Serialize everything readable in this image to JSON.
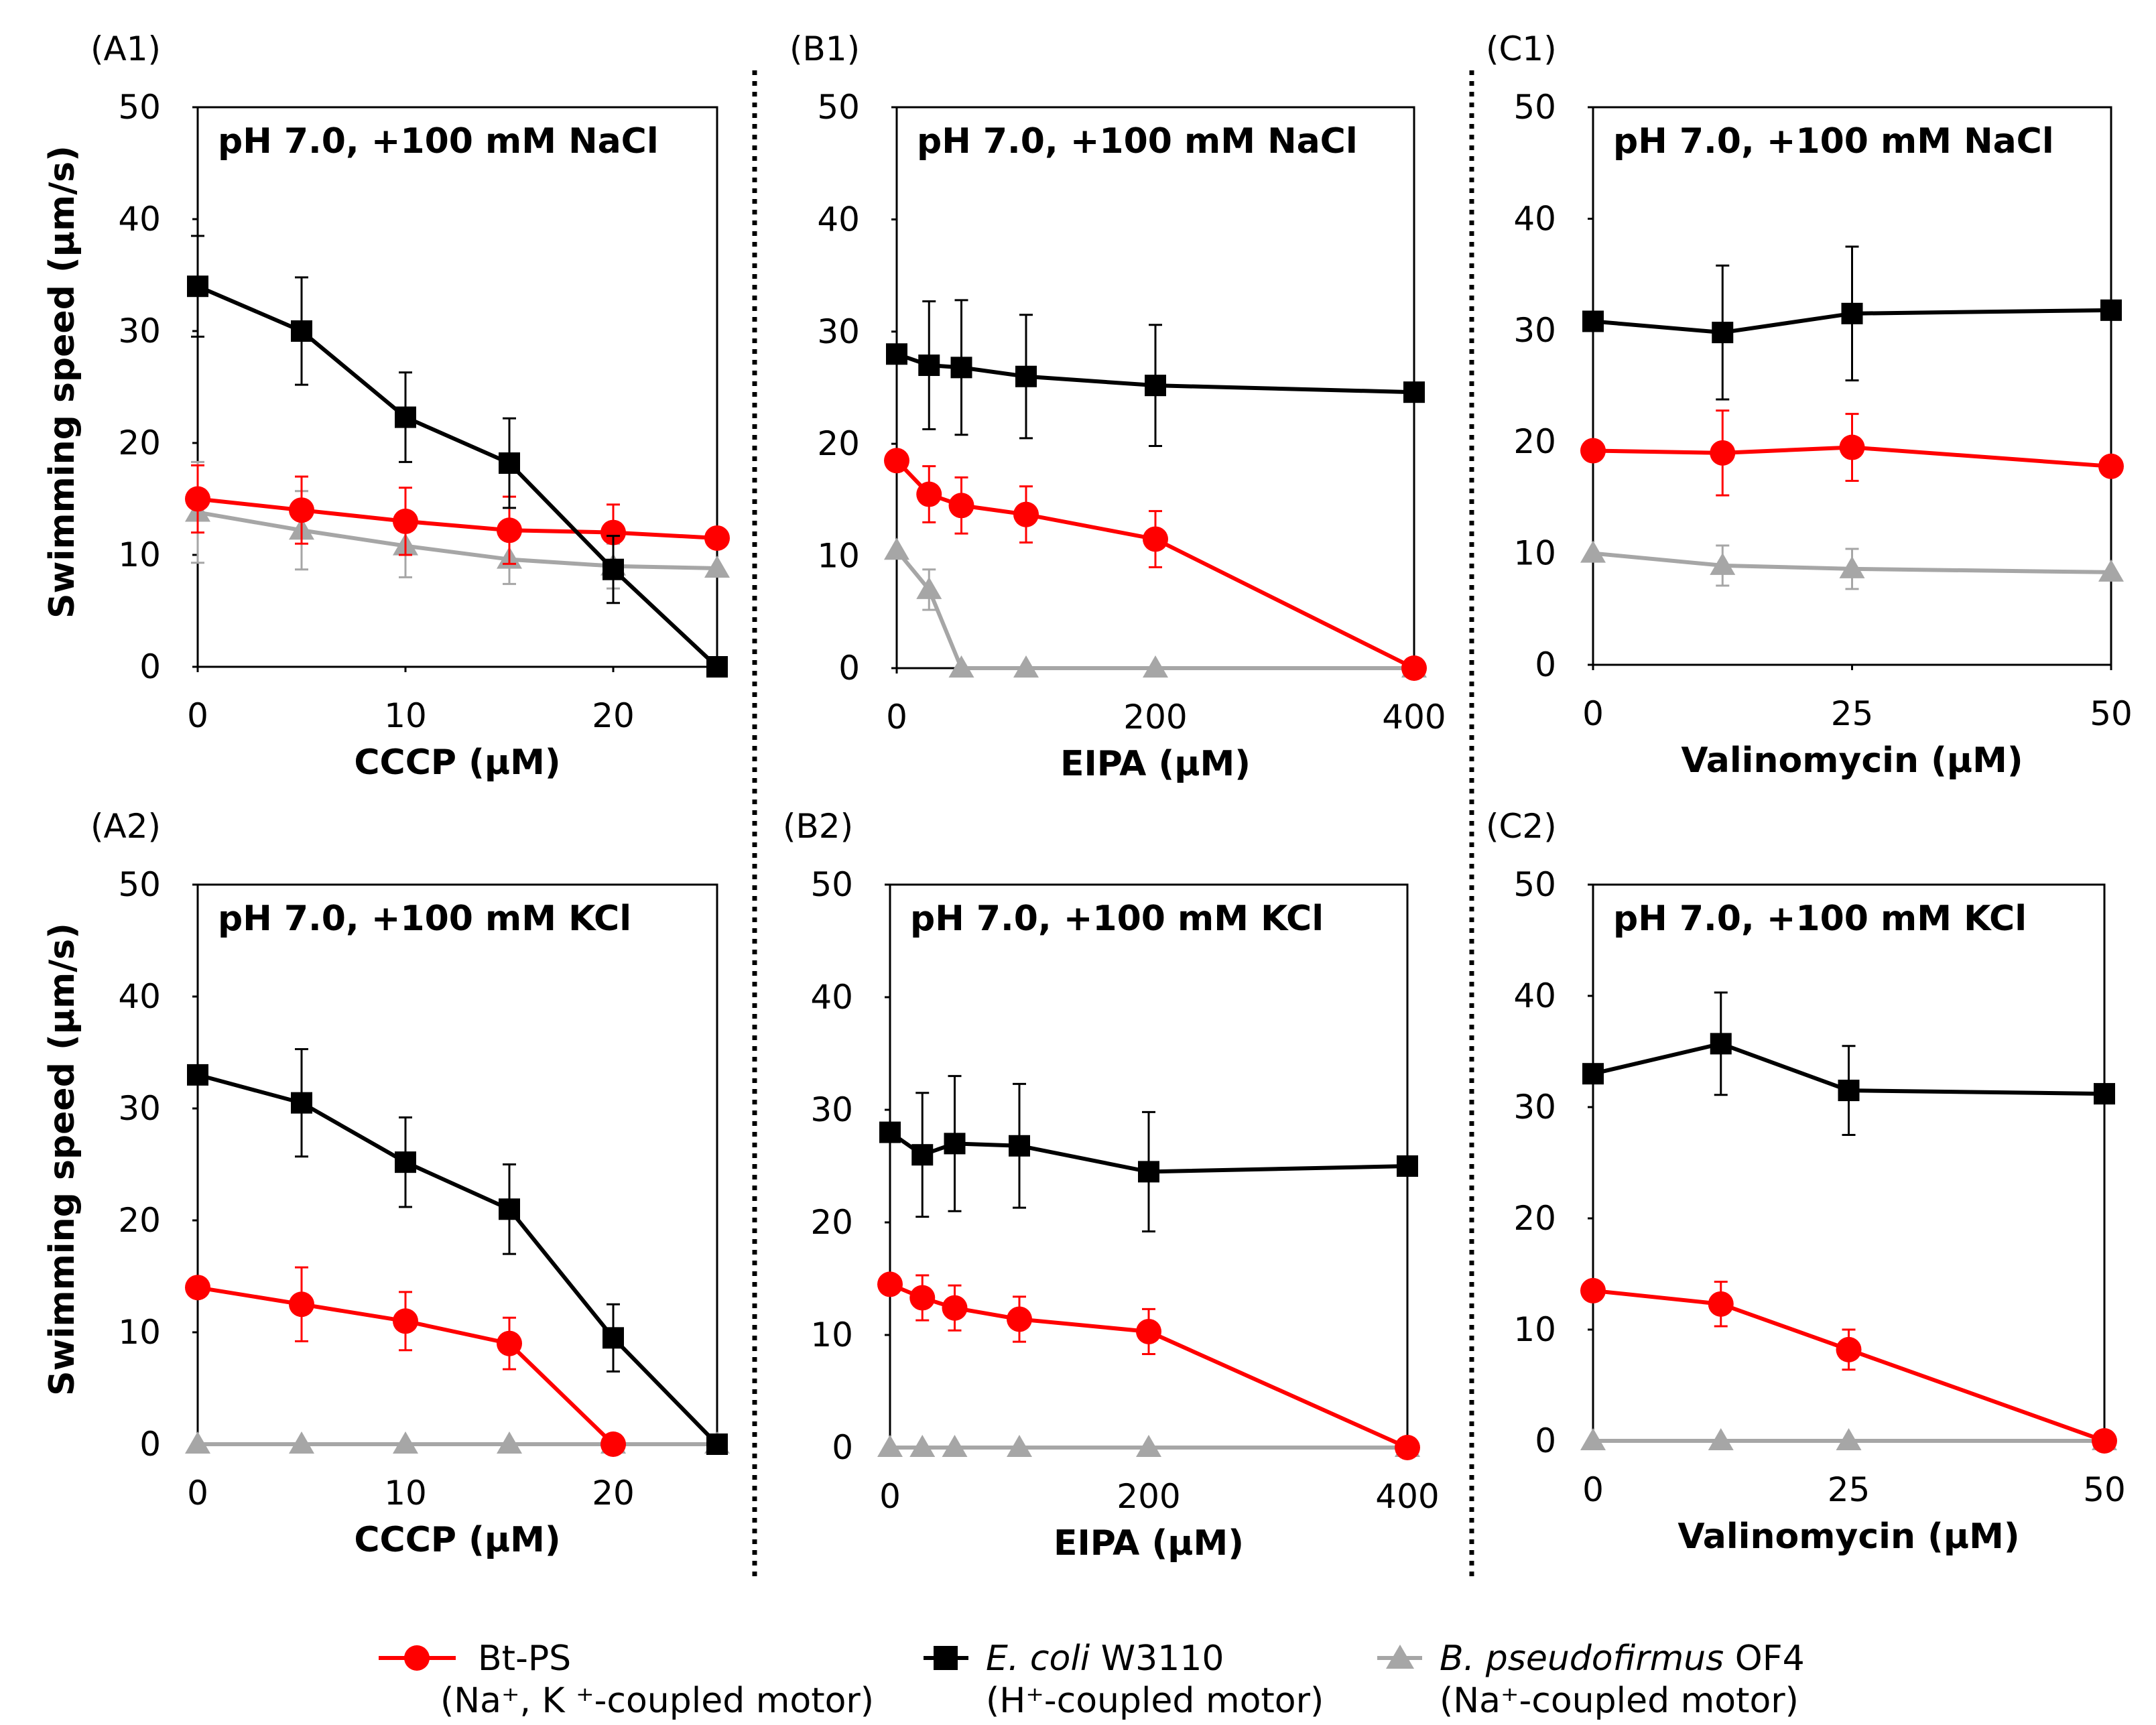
{
  "ylabels": [
    "Swimming speed (μm/s)",
    "Swimming speed  (μm/s)"
  ],
  "legend": [
    {
      "line1": "Bt-PS",
      "line2": "(Na⁺, K ⁺-coupled motor)",
      "color": "#ff0000",
      "marker": "circle"
    },
    {
      "line1_italic": "E. coli",
      "line1_rest": " W3110",
      "line2": "(H⁺-coupled motor)",
      "color": "#000000",
      "marker": "square"
    },
    {
      "line1_italic": "B. pseudofirmus",
      "line1_rest": " OF4",
      "line2": "(Na⁺-coupled motor)",
      "color": "#a6a6a6",
      "marker": "triangle"
    }
  ],
  "colors": {
    "bt": "#ff0000",
    "ecoli": "#000000",
    "bpseudo": "#a6a6a6"
  },
  "chart_data": [
    {
      "id": "A1",
      "panel_label": "(A1)",
      "type": "line",
      "title": "pH 7.0, +100 mM NaCl",
      "xlabel": "CCCP (μM)",
      "xlim": [
        0,
        25
      ],
      "xticks": [
        0,
        10,
        20
      ],
      "ylim": [
        0,
        50
      ],
      "yticks": [
        0,
        10,
        20,
        30,
        40,
        50
      ],
      "series": [
        {
          "name": "Bt-PS",
          "x": [
            0,
            5,
            10,
            15,
            20,
            25
          ],
          "y": [
            15,
            14,
            13,
            12.2,
            12,
            11.5
          ],
          "err": [
            3,
            3,
            3,
            3,
            2.5,
            0
          ]
        },
        {
          "name": "E. coli W3110",
          "x": [
            0,
            5,
            10,
            15,
            20,
            25
          ],
          "y": [
            34,
            30,
            22.3,
            18.2,
            8.7,
            0
          ],
          "err": [
            4.5,
            4.8,
            4,
            4,
            3,
            0
          ]
        },
        {
          "name": "B. pseudofirmus OF4",
          "x": [
            0,
            5,
            10,
            15,
            20,
            25
          ],
          "y": [
            13.8,
            12.2,
            10.8,
            9.6,
            9,
            8.8
          ],
          "err": [
            4.5,
            3.5,
            2.8,
            2.2,
            2,
            0
          ]
        }
      ]
    },
    {
      "id": "B1",
      "panel_label": "(B1)",
      "type": "line",
      "title": "pH 7.0, +100 mM NaCl",
      "xlabel": "EIPA (μM)",
      "xlim": [
        0,
        400
      ],
      "xticks": [
        0,
        200,
        400
      ],
      "ylim": [
        0,
        50
      ],
      "yticks": [
        0,
        10,
        20,
        30,
        40,
        50
      ],
      "series": [
        {
          "name": "Bt-PS",
          "x": [
            0,
            25,
            50,
            100,
            200,
            400
          ],
          "y": [
            18.5,
            15.5,
            14.5,
            13.7,
            11.5,
            0
          ],
          "err": [
            0,
            2.5,
            2.5,
            2.5,
            2.5,
            0
          ]
        },
        {
          "name": "E. coli W3110",
          "x": [
            0,
            25,
            50,
            100,
            200,
            400
          ],
          "y": [
            28,
            27,
            26.8,
            26,
            25.2,
            24.6
          ],
          "err": [
            0,
            5.7,
            6,
            5.5,
            5.4,
            0
          ]
        },
        {
          "name": "B. pseudofirmus OF4",
          "x": [
            0,
            25,
            50,
            100,
            200,
            400
          ],
          "y": [
            10.5,
            7,
            0,
            0,
            0,
            0
          ],
          "err": [
            0,
            1.8,
            0,
            0,
            0,
            0
          ]
        }
      ]
    },
    {
      "id": "C1",
      "panel_label": "(C1)",
      "type": "line",
      "title": "pH 7.0, +100 mM NaCl",
      "xlabel": "Valinomycin (μM)",
      "xlim": [
        0,
        50
      ],
      "xticks": [
        0,
        25,
        50
      ],
      "ylim": [
        0,
        50
      ],
      "yticks": [
        0,
        10,
        20,
        30,
        40,
        50
      ],
      "series": [
        {
          "name": "Bt-PS",
          "x": [
            0,
            12.5,
            25,
            50
          ],
          "y": [
            19.2,
            19,
            19.5,
            17.8
          ],
          "err": [
            0,
            3.8,
            3,
            0
          ]
        },
        {
          "name": "E. coli W3110",
          "x": [
            0,
            12.5,
            25,
            50
          ],
          "y": [
            30.8,
            29.8,
            31.5,
            31.8
          ],
          "err": [
            0,
            6,
            6,
            0
          ]
        },
        {
          "name": "B. pseudofirmus OF4",
          "x": [
            0,
            12.5,
            25,
            50
          ],
          "y": [
            10,
            8.9,
            8.6,
            8.3
          ],
          "err": [
            0,
            1.8,
            1.8,
            0
          ]
        }
      ]
    },
    {
      "id": "A2",
      "panel_label": "(A2)",
      "type": "line",
      "title": "pH 7.0, +100 mM KCl",
      "xlabel": "CCCP (μM)",
      "xlim": [
        0,
        25
      ],
      "xticks": [
        0,
        10,
        20
      ],
      "ylim": [
        0,
        50
      ],
      "yticks": [
        0,
        10,
        20,
        30,
        40,
        50
      ],
      "series": [
        {
          "name": "Bt-PS",
          "x": [
            0,
            5,
            10,
            15,
            20
          ],
          "y": [
            14,
            12.5,
            11,
            9,
            0
          ],
          "err": [
            0,
            3.3,
            2.6,
            2.3,
            0
          ]
        },
        {
          "name": "E. coli W3110",
          "x": [
            0,
            5,
            10,
            15,
            20,
            25
          ],
          "y": [
            33,
            30.5,
            25.2,
            21,
            9.5,
            0
          ],
          "err": [
            0,
            4.8,
            4,
            4,
            3,
            0
          ]
        },
        {
          "name": "B. pseudofirmus OF4",
          "x": [
            0,
            5,
            10,
            15,
            20,
            25
          ],
          "y": [
            0,
            0,
            0,
            0,
            0,
            0
          ],
          "err": [
            0,
            0,
            0,
            0,
            0,
            0
          ]
        }
      ]
    },
    {
      "id": "B2",
      "panel_label": "(B2)",
      "type": "line",
      "title": "pH 7.0, +100 mM KCl",
      "xlabel": "EIPA (μM)",
      "xlim": [
        0,
        400
      ],
      "xticks": [
        0,
        200,
        400
      ],
      "ylim": [
        0,
        50
      ],
      "yticks": [
        0,
        10,
        20,
        30,
        40,
        50
      ],
      "series": [
        {
          "name": "Bt-PS",
          "x": [
            0,
            25,
            50,
            100,
            200,
            400
          ],
          "y": [
            14.5,
            13.3,
            12.4,
            11.4,
            10.3,
            0
          ],
          "err": [
            0,
            2,
            2,
            2,
            2,
            0
          ]
        },
        {
          "name": "E. coli W3110",
          "x": [
            0,
            25,
            50,
            100,
            200,
            400
          ],
          "y": [
            28,
            26,
            27,
            26.8,
            24.5,
            25
          ],
          "err": [
            0,
            5.5,
            6,
            5.5,
            5.3,
            0
          ]
        },
        {
          "name": "B. pseudofirmus OF4",
          "x": [
            0,
            25,
            50,
            100,
            200,
            400
          ],
          "y": [
            0,
            0,
            0,
            0,
            0,
            0
          ],
          "err": [
            0,
            0,
            0,
            0,
            0,
            0
          ]
        }
      ]
    },
    {
      "id": "C2",
      "panel_label": "(C2)",
      "type": "line",
      "title": "pH 7.0, +100 mM KCl",
      "xlabel": "Valinomycin (μM)",
      "xlim": [
        0,
        50
      ],
      "xticks": [
        0,
        25,
        50
      ],
      "ylim": [
        0,
        50
      ],
      "yticks": [
        0,
        10,
        20,
        30,
        40,
        50
      ],
      "series": [
        {
          "name": "Bt-PS",
          "x": [
            0,
            12.5,
            25,
            50
          ],
          "y": [
            13.5,
            12.3,
            8.2,
            0
          ],
          "err": [
            0,
            2,
            1.8,
            0
          ]
        },
        {
          "name": "E. coli W3110",
          "x": [
            0,
            12.5,
            25,
            50
          ],
          "y": [
            33,
            35.7,
            31.5,
            31.2
          ],
          "err": [
            0,
            4.6,
            4,
            0
          ]
        },
        {
          "name": "B. pseudofirmus OF4",
          "x": [
            0,
            12.5,
            25,
            50
          ],
          "y": [
            0,
            0,
            0,
            0
          ],
          "err": [
            0,
            0,
            0,
            0
          ]
        }
      ]
    }
  ]
}
